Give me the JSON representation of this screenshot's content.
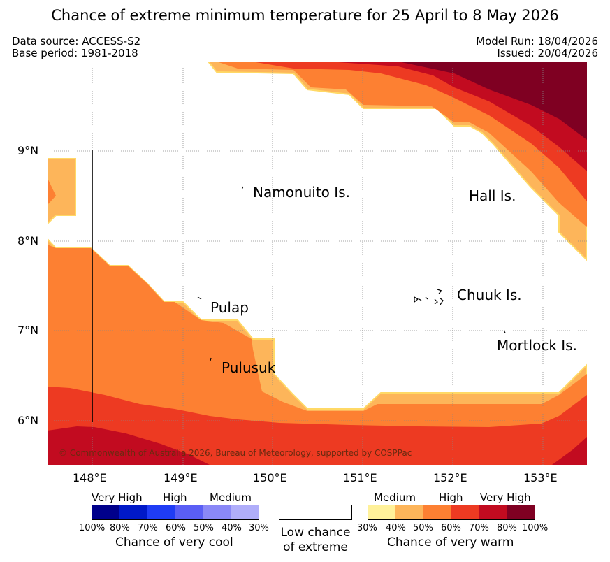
{
  "title": "Chance of extreme minimum temperature for 25 April to 8 May 2026",
  "meta": {
    "data_source": "Data source: ACCESS-S2",
    "base_period": "Base period: 1981-2018",
    "model_run": "Model Run: 18/04/2026",
    "issued": "Issued: 20/04/2026"
  },
  "map": {
    "lat_labels": [
      "9°N",
      "8°N",
      "7°N",
      "6°N"
    ],
    "lon_labels": [
      "148°E",
      "149°E",
      "150°E",
      "151°E",
      "152°E",
      "153°E"
    ],
    "places": {
      "namonuito": "Namonuito Is.",
      "hall": "Hall Is.",
      "pulap": "Pulap",
      "chuuk": "Chuuk Is.",
      "pulusuk": "Pulusuk",
      "mortlock": "Mortlock Is."
    },
    "copyright": "© Commonwealth of Australia 2026, Bureau of Meteorology, supported by COSPPac"
  },
  "legend": {
    "cool": {
      "categories": [
        "Very High",
        "High",
        "Medium"
      ],
      "percents": [
        "100%",
        "80%",
        "70%",
        "60%",
        "50%",
        "40%",
        "30%"
      ],
      "caption": "Chance of very cool",
      "colors": [
        "#00008b",
        "#0019c8",
        "#1f3cf5",
        "#5a5ef5",
        "#8a88f7",
        "#b0aefa"
      ]
    },
    "neutral": {
      "caption_line1": "Low chance",
      "caption_line2": "of extreme"
    },
    "warm": {
      "categories": [
        "Medium",
        "High",
        "Very High"
      ],
      "percents": [
        "30%",
        "40%",
        "50%",
        "60%",
        "70%",
        "80%",
        "100%"
      ],
      "caption": "Chance of very warm",
      "colors": [
        "#fff19a",
        "#fdb55a",
        "#fd8032",
        "#ed3a22",
        "#c20b20",
        "#7f0022"
      ]
    }
  }
}
